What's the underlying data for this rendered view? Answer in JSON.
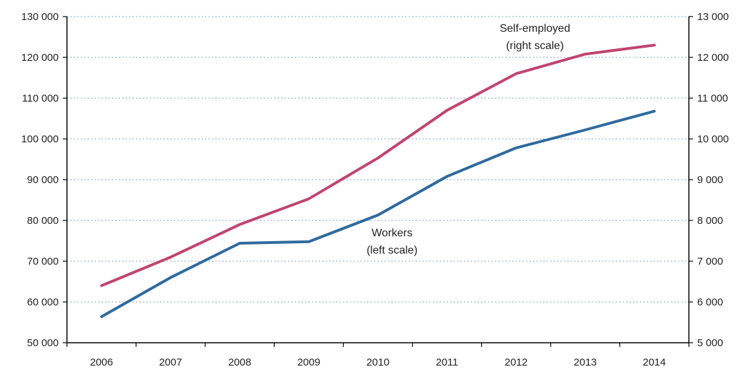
{
  "chart_data": {
    "type": "line",
    "title": "",
    "xlabel": "",
    "ylabel": "",
    "categories": [
      "2006",
      "2007",
      "2008",
      "2009",
      "2010",
      "2011",
      "2012",
      "2013",
      "2014"
    ],
    "y_left": {
      "lim": [
        50000,
        130000
      ],
      "ticks": [
        50000,
        60000,
        70000,
        80000,
        90000,
        100000,
        110000,
        120000,
        130000
      ],
      "tick_labels": [
        "50 000",
        "60 000",
        "70 000",
        "80 000",
        "90 000",
        "100 000",
        "110 000",
        "120 000",
        "130 000"
      ]
    },
    "y_right": {
      "lim": [
        5000,
        13000
      ],
      "ticks": [
        5000,
        6000,
        7000,
        8000,
        9000,
        10000,
        11000,
        12000,
        13000
      ],
      "tick_labels": [
        "5 000",
        "6 000",
        "7 000",
        "8 000",
        "9 000",
        "10 000",
        "11 000",
        "12 000",
        "13 000"
      ]
    },
    "grid": "horizontal dotted",
    "legend": "none",
    "series": [
      {
        "key": "workers",
        "axis": "left",
        "color": "#2e6a9e",
        "values": [
          56400,
          66000,
          74400,
          74800,
          81300,
          90800,
          97800,
          102200,
          106800
        ]
      },
      {
        "key": "self_employed",
        "axis": "right",
        "color": "#c0456e",
        "values": [
          6400,
          7100,
          7900,
          8530,
          9530,
          10700,
          11600,
          12080,
          12300
        ]
      }
    ],
    "annotations": [
      {
        "series": "self_employed",
        "lines": [
          "Self-employed",
          "(right scale)"
        ]
      },
      {
        "series": "workers",
        "lines": [
          "Workers",
          "(left scale)"
        ]
      }
    ],
    "grid_color": "#9fb3c8",
    "axis_color": "#000000"
  }
}
